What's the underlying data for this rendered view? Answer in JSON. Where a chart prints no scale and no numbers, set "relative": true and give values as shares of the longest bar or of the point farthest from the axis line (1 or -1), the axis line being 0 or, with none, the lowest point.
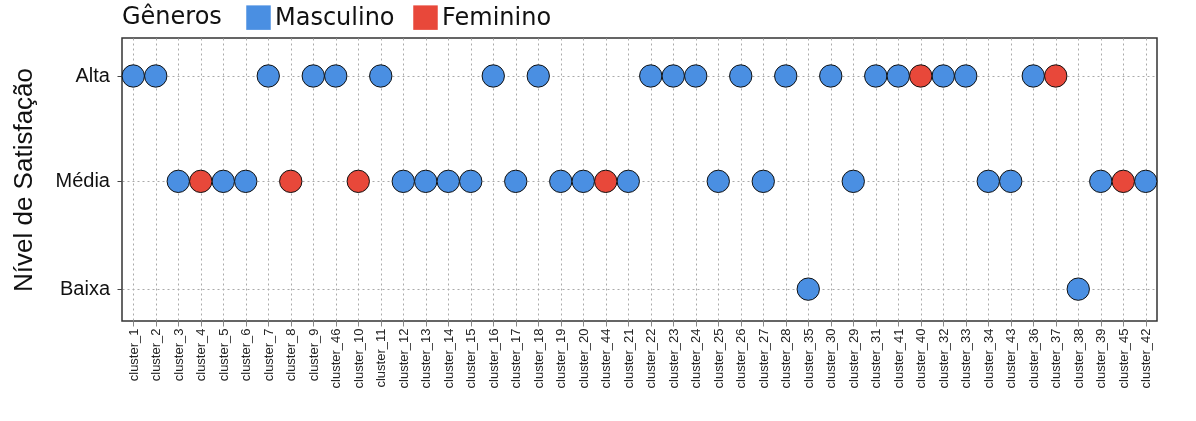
{
  "chart_data": {
    "type": "scatter",
    "relative": true,
    "ylabel": "Nível de Satisfação",
    "legend_title": "Gêneros",
    "legend": "top",
    "grid": true,
    "marker": "circle",
    "categories": [
      "cluster_1",
      "cluster_2",
      "cluster_3",
      "cluster_4",
      "cluster_5",
      "cluster_6",
      "cluster_7",
      "cluster_8",
      "cluster_9",
      "cluster_46",
      "cluster_10",
      "cluster_11",
      "cluster_12",
      "cluster_13",
      "cluster_14",
      "cluster_15",
      "cluster_16",
      "cluster_17",
      "cluster_18",
      "cluster_19",
      "cluster_20",
      "cluster_44",
      "cluster_21",
      "cluster_22",
      "cluster_23",
      "cluster_24",
      "cluster_25",
      "cluster_26",
      "cluster_27",
      "cluster_28",
      "cluster_35",
      "cluster_30",
      "cluster_29",
      "cluster_31",
      "cluster_41",
      "cluster_40",
      "cluster_32",
      "cluster_33",
      "cluster_34",
      "cluster_43",
      "cluster_36",
      "cluster_37",
      "cluster_38",
      "cluster_39",
      "cluster_45",
      "cluster_42"
    ],
    "annotations": [
      "Alta",
      "Média",
      "Baixa"
    ],
    "series": [
      {
        "name": "Masculino",
        "color": "#4a8fe2",
        "values": [
          1,
          1,
          0.57,
          null,
          0.57,
          0.57,
          1,
          null,
          1,
          1,
          null,
          1,
          0.57,
          0.57,
          0.57,
          0.57,
          1,
          0.57,
          1,
          0.57,
          0.57,
          null,
          0.57,
          1,
          1,
          1,
          0.57,
          1,
          0.57,
          1,
          0.13,
          1,
          0.57,
          1,
          1,
          null,
          1,
          1,
          0.57,
          0.57,
          1,
          null,
          0.13,
          0.57,
          null,
          0.57
        ]
      },
      {
        "name": "Feminino",
        "color": "#e8483a",
        "values": [
          null,
          null,
          null,
          0.57,
          null,
          null,
          null,
          0.57,
          null,
          null,
          0.57,
          null,
          null,
          null,
          null,
          null,
          null,
          null,
          null,
          null,
          null,
          0.57,
          null,
          null,
          null,
          null,
          null,
          null,
          null,
          null,
          null,
          null,
          null,
          null,
          null,
          1,
          null,
          null,
          null,
          null,
          null,
          1,
          null,
          null,
          0.57,
          null
        ]
      }
    ]
  }
}
